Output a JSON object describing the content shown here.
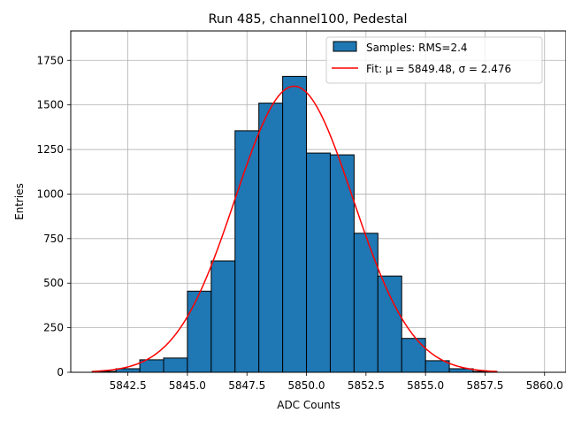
{
  "chart_data": {
    "type": "bar",
    "title": "Run 485, channel100, Pedestal",
    "xlabel": "ADC Counts",
    "ylabel": "Entries",
    "xlim": [
      5840.1,
      5860.9
    ],
    "ylim": [
      0,
      1915
    ],
    "x_ticks": [
      5842.5,
      5845.0,
      5847.5,
      5850.0,
      5852.5,
      5855.0,
      5857.5,
      5860.0
    ],
    "x_tick_labels": [
      "5842.5",
      "5845.0",
      "5847.5",
      "5850.0",
      "5852.5",
      "5855.0",
      "5857.5",
      "5860.0"
    ],
    "y_ticks": [
      0,
      250,
      500,
      750,
      1000,
      1250,
      1500,
      1750
    ],
    "y_tick_labels": [
      "0",
      "250",
      "500",
      "750",
      "1000",
      "1250",
      "1500",
      "1750"
    ],
    "grid": true,
    "legend_position": "top-right",
    "histogram": {
      "name": "Samples: RMS=2.4",
      "color": "#1f77b4",
      "edgecolor": "#000000",
      "bin_edges": [
        5841,
        5842,
        5843,
        5844,
        5845,
        5846,
        5847,
        5848,
        5849,
        5850,
        5851,
        5852,
        5853,
        5854,
        5855,
        5856,
        5857,
        5858
      ],
      "values": [
        5,
        20,
        70,
        80,
        455,
        625,
        1355,
        1510,
        1660,
        1230,
        1220,
        780,
        540,
        190,
        65,
        20,
        5
      ]
    },
    "fit": {
      "name": "Fit: μ = 5849.48, σ = 2.476",
      "color": "#ff0000",
      "mu": 5849.48,
      "sigma": 2.476,
      "amplitude": 1605,
      "x_range": [
        5841,
        5858
      ]
    }
  }
}
